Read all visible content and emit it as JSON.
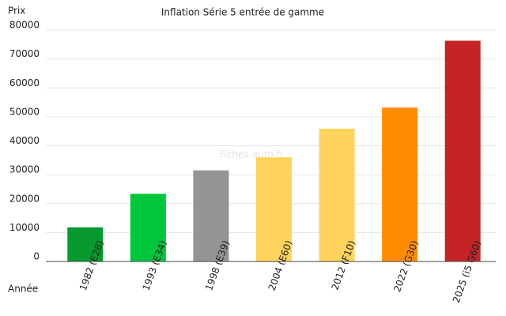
{
  "chart_data": {
    "type": "bar",
    "title": "Inflation Série 5 entrée de gamme",
    "y_label": "Prix",
    "x_label": "Année",
    "watermark": "Fiches-auto.fr",
    "categories": [
      "1982 (E28)",
      "1993 (E34)",
      "1998 (E39)",
      "2004 (E60)",
      "2012 (F10)",
      "2022 (G30)",
      "2025 (i5 G60)"
    ],
    "values": [
      11800,
      23400,
      31500,
      36000,
      45900,
      53200,
      76300
    ],
    "colors": [
      "#069a2e",
      "#00c63b",
      "#949494",
      "#ffd35c",
      "#ffd35c",
      "#ff8c00",
      "#c42424"
    ],
    "ylim": [
      0,
      80000
    ],
    "yticks": [
      0,
      10000,
      20000,
      30000,
      40000,
      50000,
      60000,
      70000,
      80000
    ],
    "grid": true
  }
}
